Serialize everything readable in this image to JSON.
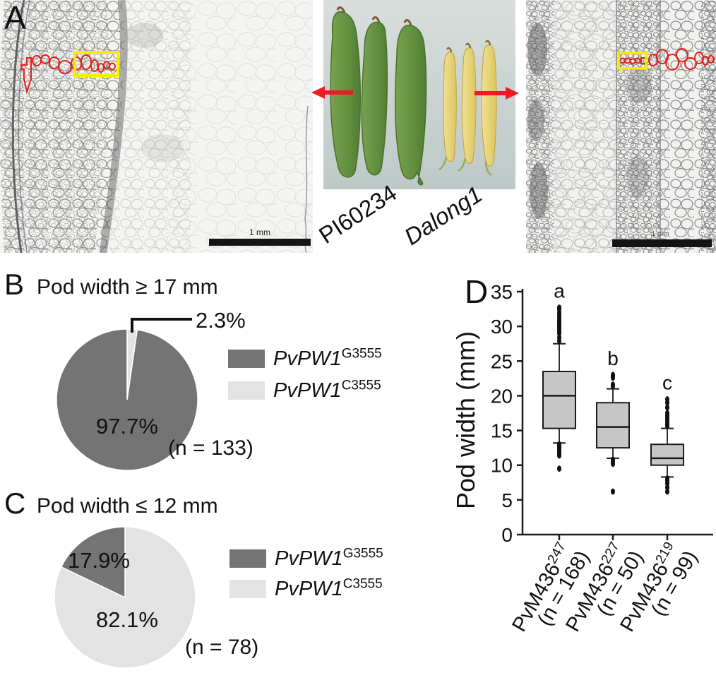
{
  "colors": {
    "dark_genotype": "#747474",
    "light_genotype": "#e3e3e3",
    "box_fill": "#c6c6c6",
    "annotation_red": "#ed1c24",
    "annotation_yellow": "#f8ec00"
  },
  "panel_a": {
    "letter": "A",
    "label_left_variety": "PI60234",
    "label_right_variety": "Dalong1",
    "scale_bar_left": "1 mm",
    "scale_bar_right": "1 mm"
  },
  "panel_b": {
    "letter": "B"
  },
  "panel_c": {
    "letter": "C"
  },
  "panel_d": {
    "letter": "D"
  },
  "chart_data": [
    {
      "id": "pie_b",
      "type": "pie",
      "panel": "B",
      "title": "Pod width ≥ 17 mm",
      "n_label": "(n = 133)",
      "start_deg": 90,
      "legend_position": "right",
      "slices": [
        {
          "name": "PvPW1 C3555",
          "value": 2.3,
          "label": "2.3%",
          "color": "#e3e3e3"
        },
        {
          "name": "PvPW1 G3555",
          "value": 97.7,
          "label": "97.7%",
          "color": "#747474"
        }
      ],
      "legend": [
        {
          "gene": "PvPW1",
          "sup": "G3555",
          "color": "#747474"
        },
        {
          "gene": "PvPW1",
          "sup": "C3555",
          "color": "#e3e3e3"
        }
      ]
    },
    {
      "id": "pie_c",
      "type": "pie",
      "panel": "C",
      "title": "Pod width ≤ 12 mm",
      "n_label": "(n = 78)",
      "start_deg": 90,
      "legend_position": "right",
      "slices": [
        {
          "name": "PvPW1 C3555",
          "value": 82.1,
          "label": "82.1%",
          "color": "#e3e3e3"
        },
        {
          "name": "PvPW1 G3555",
          "value": 17.9,
          "label": "17.9%",
          "color": "#747474"
        }
      ],
      "legend": [
        {
          "gene": "PvPW1",
          "sup": "G3555",
          "color": "#747474"
        },
        {
          "gene": "PvPW1",
          "sup": "C3555",
          "color": "#e3e3e3"
        }
      ]
    },
    {
      "id": "box_d",
      "type": "box",
      "panel": "D",
      "ylabel": "Pod width (mm)",
      "ylim": [
        0,
        35
      ],
      "yticks": [
        0,
        5,
        10,
        15,
        20,
        25,
        30,
        35
      ],
      "groups": [
        {
          "label": "PvM436",
          "sup": "247",
          "n_label": "(n = 168)",
          "sig_letter": "a",
          "q1": 15.3,
          "median": 20,
          "q3": 23.5,
          "whisker_low": 13.2,
          "whisker_high": 27.5,
          "outliers_high": [
            27.9,
            28.4,
            29,
            29.3,
            29.6,
            29.9,
            30.1,
            30.4,
            30.7,
            31,
            31.3,
            31.6,
            32,
            32.5,
            32.7
          ],
          "outliers_low": [
            13,
            12.8,
            12.6,
            12.4,
            12.1,
            11.9,
            11.6,
            11.4,
            9.5
          ]
        },
        {
          "label": "PvM436",
          "sup": "227",
          "n_label": "(n = 50)",
          "sig_letter": "b",
          "q1": 12.5,
          "median": 15.5,
          "q3": 19,
          "whisker_low": 11,
          "whisker_high": 21,
          "outliers_high": [
            21.4,
            21.6,
            22.6,
            22.8,
            23
          ],
          "outliers_low": [
            10.8,
            10.5,
            10.2,
            6.2
          ]
        },
        {
          "label": "PvM436",
          "sup": "219",
          "n_label": "(n = 99)",
          "sig_letter": "c",
          "q1": 10,
          "median": 11,
          "q3": 13,
          "whisker_low": 8.3,
          "whisker_high": 15.3,
          "outliers_high": [
            15.6,
            15.9,
            16.2,
            16.5,
            16.8,
            17.1,
            17.5,
            18.3,
            19,
            19.5
          ],
          "outliers_low": [
            8.1,
            7.8,
            7.4,
            6.8,
            6.2
          ]
        }
      ]
    }
  ]
}
